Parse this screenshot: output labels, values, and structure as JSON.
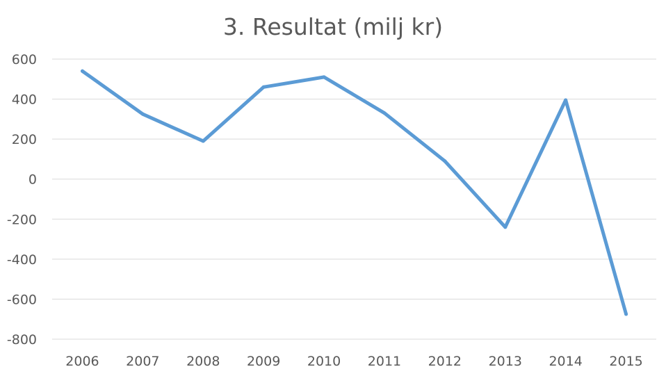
{
  "chart_data": {
    "type": "line",
    "title": "3. Resultat (milj kr)",
    "xlabel": "",
    "ylabel": "",
    "categories": [
      "2006",
      "2007",
      "2008",
      "2009",
      "2010",
      "2011",
      "2012",
      "2013",
      "2014",
      "2015"
    ],
    "series": [
      {
        "values": [
          540,
          325,
          190,
          460,
          510,
          330,
          90,
          -240,
          395,
          -675
        ],
        "color": "#5b9bd5"
      }
    ],
    "ylim": [
      -800,
      600
    ],
    "yticks": [
      600,
      400,
      200,
      0,
      -200,
      -400,
      -600,
      -800
    ],
    "ytick_labels": [
      "600",
      "400",
      "200",
      "0",
      "-200",
      "-400",
      "-600",
      "-800"
    ],
    "grid": true,
    "gridline_color": "#d9d9d9",
    "legend": "none"
  }
}
